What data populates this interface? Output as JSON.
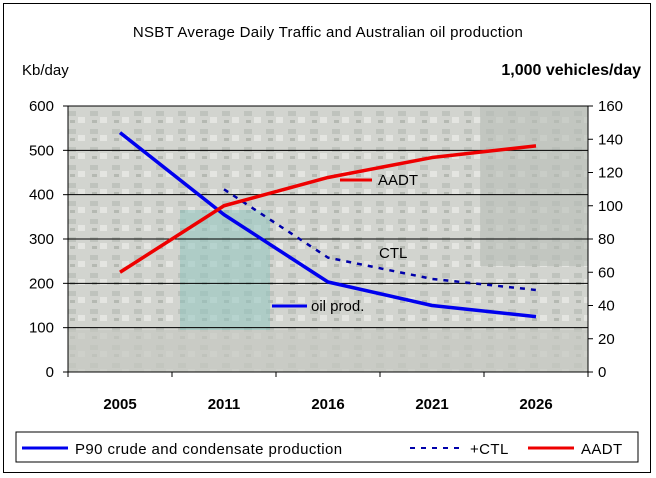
{
  "chart_data": {
    "type": "line",
    "title": "NSBT Average Daily Traffic and Australian oil production",
    "ylabel_left": "Kb/day",
    "ylabel_right": "1,000 vehicles/day",
    "categories": [
      "2005",
      "2011",
      "2016",
      "2021",
      "2026"
    ],
    "ylim_left": [
      0,
      600
    ],
    "ylim_right": [
      0,
      160
    ],
    "yticks_left": [
      "0",
      "100",
      "200",
      "300",
      "400",
      "500",
      "600"
    ],
    "yticks_right": [
      "0",
      "20",
      "40",
      "60",
      "80",
      "100",
      "120",
      "140",
      "160"
    ],
    "grid": true,
    "legend_position": "bottom",
    "series": [
      {
        "name": "P90 crude and condensate production",
        "inline_label": "oil prod.",
        "axis": "left",
        "color": "#0000ee",
        "style": "solid",
        "x": [
          "2005",
          "2011",
          "2016",
          "2021",
          "2026"
        ],
        "values": [
          540,
          355,
          203,
          150,
          125
        ]
      },
      {
        "name": "+CTL",
        "inline_label": "CTL",
        "axis": "left",
        "color": "#0000aa",
        "style": "dashed",
        "x": [
          "2011",
          "2016",
          "2021",
          "2026"
        ],
        "values": [
          412,
          258,
          210,
          185
        ]
      },
      {
        "name": "AADT",
        "inline_label": "AADT",
        "axis": "right",
        "color": "#ee0000",
        "style": "solid",
        "x": [
          "2005",
          "2011",
          "2016",
          "2021",
          "2026"
        ],
        "values": [
          60,
          100,
          117,
          129,
          136
        ]
      }
    ],
    "background": "traffic photograph"
  }
}
